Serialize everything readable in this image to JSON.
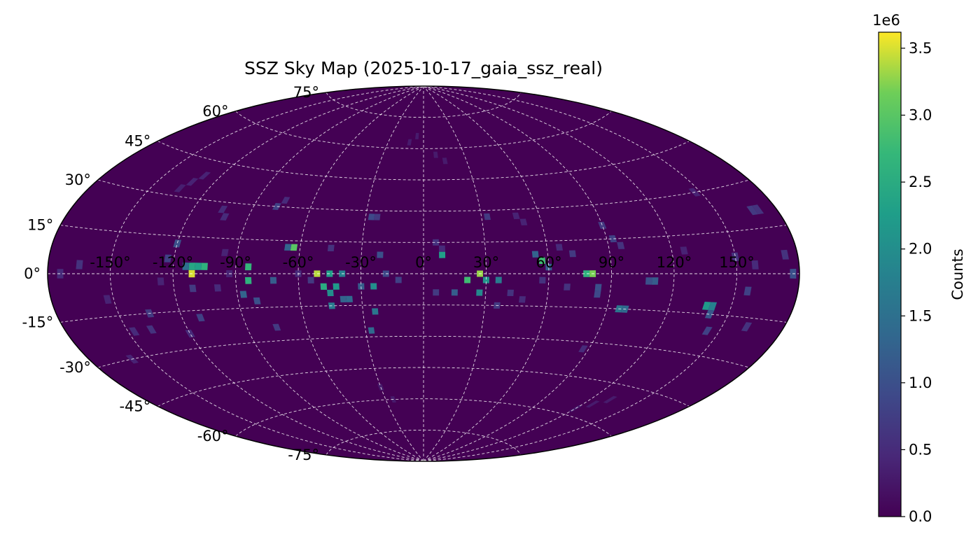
{
  "chart_data": {
    "type": "heatmap",
    "projection": "aitoff",
    "title": "SSZ Sky Map (2025-10-17_gaia_ssz_real)",
    "colormap": "viridis",
    "grid": true,
    "xlim": [
      -180,
      180
    ],
    "ylim": [
      -90,
      90
    ],
    "lon_ticks": [
      -150,
      -120,
      -90,
      -60,
      -30,
      0,
      30,
      60,
      90,
      120,
      150
    ],
    "lon_tick_labels": [
      "-150°",
      "-120°",
      "-90°",
      "-60°",
      "-30°",
      "0°",
      "30°",
      "60°",
      "90°",
      "120°",
      "150°"
    ],
    "lat_ticks": [
      75,
      60,
      45,
      30,
      15,
      0,
      -15,
      -30,
      -45,
      -60,
      -75
    ],
    "lat_tick_labels": [
      "75°",
      "60°",
      "45°",
      "30°",
      "15°",
      "0°",
      "-15°",
      "-30°",
      "-45°",
      "-60°",
      "-75°"
    ],
    "colorbar": {
      "label": "Counts",
      "offset_text": "1e6",
      "vmin": 0,
      "vmax": 3620000,
      "ticks": [
        0,
        500000,
        1000000,
        1500000,
        2000000,
        2500000,
        3000000,
        3500000
      ],
      "tick_labels": [
        "0.0",
        "0.5",
        "1.0",
        "1.5",
        "2.0",
        "2.5",
        "3.0",
        "3.5"
      ]
    },
    "bin_size_deg": 3,
    "cells": [
      {
        "lon": -111,
        "lat": 0,
        "value": 3500000
      },
      {
        "lon": -111,
        "lat": 3,
        "value": 2400000
      },
      {
        "lon": -114,
        "lat": 3,
        "value": 1500000
      },
      {
        "lon": -108,
        "lat": 3,
        "value": 2300000
      },
      {
        "lon": -105,
        "lat": 3,
        "value": 2600000
      },
      {
        "lon": -120,
        "lat": 12,
        "value": 1000000
      },
      {
        "lon": -123,
        "lat": 6,
        "value": 800000
      },
      {
        "lon": -111,
        "lat": -6,
        "value": 700000
      },
      {
        "lon": -111,
        "lat": -18,
        "value": 800000
      },
      {
        "lon": -135,
        "lat": -15,
        "value": 700000
      },
      {
        "lon": -138,
        "lat": -21,
        "value": 600000
      },
      {
        "lon": -120,
        "lat": -24,
        "value": 500000
      },
      {
        "lon": -105,
        "lat": 27,
        "value": 500000
      },
      {
        "lon": -102,
        "lat": 24,
        "value": 500000
      },
      {
        "lon": -93,
        "lat": 0,
        "value": 400000
      },
      {
        "lon": -84,
        "lat": 3,
        "value": 2700000
      },
      {
        "lon": -84,
        "lat": -3,
        "value": 2600000
      },
      {
        "lon": -87,
        "lat": -9,
        "value": 1300000
      },
      {
        "lon": -81,
        "lat": -12,
        "value": 1000000
      },
      {
        "lon": -72,
        "lat": -3,
        "value": 1200000
      },
      {
        "lon": -75,
        "lat": -24,
        "value": 700000
      },
      {
        "lon": -78,
        "lat": 30,
        "value": 800000
      },
      {
        "lon": -75,
        "lat": 33,
        "value": 500000
      },
      {
        "lon": -63,
        "lat": 12,
        "value": 3000000
      },
      {
        "lon": -66,
        "lat": 12,
        "value": 1300000
      },
      {
        "lon": -51,
        "lat": 0,
        "value": 3400000
      },
      {
        "lon": -48,
        "lat": -6,
        "value": 2500000
      },
      {
        "lon": -45,
        "lat": -9,
        "value": 2000000
      },
      {
        "lon": -42,
        "lat": -6,
        "value": 2200000
      },
      {
        "lon": -45,
        "lat": 0,
        "value": 2300000
      },
      {
        "lon": -39,
        "lat": 0,
        "value": 1800000
      },
      {
        "lon": -36,
        "lat": -12,
        "value": 1400000
      },
      {
        "lon": -39,
        "lat": -12,
        "value": 1300000
      },
      {
        "lon": -45,
        "lat": -15,
        "value": 1700000
      },
      {
        "lon": -30,
        "lat": -6,
        "value": 1200000
      },
      {
        "lon": -24,
        "lat": -6,
        "value": 2000000
      },
      {
        "lon": -24,
        "lat": -18,
        "value": 1600000
      },
      {
        "lon": -27,
        "lat": -27,
        "value": 1400000
      },
      {
        "lon": -21,
        "lat": 9,
        "value": 1000000
      },
      {
        "lon": -27,
        "lat": 27,
        "value": 900000
      },
      {
        "lon": -24,
        "lat": 27,
        "value": 700000
      },
      {
        "lon": -18,
        "lat": 0,
        "value": 900000
      },
      {
        "lon": -12,
        "lat": -3,
        "value": 800000
      },
      {
        "lon": 6,
        "lat": 15,
        "value": 600000
      },
      {
        "lon": 9,
        "lat": 12,
        "value": 500000
      },
      {
        "lon": 9,
        "lat": 9,
        "value": 2300000
      },
      {
        "lon": 6,
        "lat": -9,
        "value": 700000
      },
      {
        "lon": 15,
        "lat": -9,
        "value": 1200000
      },
      {
        "lon": 21,
        "lat": -3,
        "value": 2800000
      },
      {
        "lon": 27,
        "lat": 0,
        "value": 3300000
      },
      {
        "lon": 30,
        "lat": -3,
        "value": 2100000
      },
      {
        "lon": 36,
        "lat": -3,
        "value": 1700000
      },
      {
        "lon": 27,
        "lat": -9,
        "value": 1900000
      },
      {
        "lon": 36,
        "lat": -15,
        "value": 700000
      },
      {
        "lon": 33,
        "lat": 27,
        "value": 700000
      },
      {
        "lon": 54,
        "lat": 9,
        "value": 1300000
      },
      {
        "lon": 57,
        "lat": 6,
        "value": 2800000
      },
      {
        "lon": 60,
        "lat": 3,
        "value": 1200000
      },
      {
        "lon": 57,
        "lat": -3,
        "value": 600000
      },
      {
        "lon": 72,
        "lat": 9,
        "value": 700000
      },
      {
        "lon": 81,
        "lat": 0,
        "value": 3200000
      },
      {
        "lon": 78,
        "lat": 0,
        "value": 2600000
      },
      {
        "lon": 84,
        "lat": -6,
        "value": 1000000
      },
      {
        "lon": 84,
        "lat": -9,
        "value": 900000
      },
      {
        "lon": 96,
        "lat": -15,
        "value": 1600000
      },
      {
        "lon": 99,
        "lat": -15,
        "value": 1400000
      },
      {
        "lon": 90,
        "lat": 21,
        "value": 700000
      },
      {
        "lon": 93,
        "lat": 15,
        "value": 800000
      },
      {
        "lon": 96,
        "lat": 12,
        "value": 600000
      },
      {
        "lon": 87,
        "lat": -33,
        "value": 500000
      },
      {
        "lon": 111,
        "lat": -3,
        "value": 1200000
      },
      {
        "lon": 108,
        "lat": -3,
        "value": 1000000
      },
      {
        "lon": 138,
        "lat": -12,
        "value": 2200000
      },
      {
        "lon": 141,
        "lat": -12,
        "value": 1800000
      },
      {
        "lon": 141,
        "lat": -15,
        "value": 1100000
      },
      {
        "lon": 144,
        "lat": -21,
        "value": 800000
      },
      {
        "lon": 150,
        "lat": 6,
        "value": 600000
      },
      {
        "lon": 156,
        "lat": -6,
        "value": 800000
      },
      {
        "lon": 162,
        "lat": -18,
        "value": 600000
      },
      {
        "lon": 168,
        "lat": 21,
        "value": 700000
      },
      {
        "lon": 171,
        "lat": 21,
        "value": 600000
      },
      {
        "lon": 159,
        "lat": 3,
        "value": 500000
      },
      {
        "lon": 174,
        "lat": 6,
        "value": 600000
      },
      {
        "lon": 177,
        "lat": 0,
        "value": 1000000
      },
      {
        "lon": 147,
        "lat": 30,
        "value": 400000
      },
      {
        "lon": -147,
        "lat": -21,
        "value": 500000
      },
      {
        "lon": -165,
        "lat": 3,
        "value": 600000
      },
      {
        "lon": -174,
        "lat": 0,
        "value": 500000
      },
      {
        "lon": -159,
        "lat": -30,
        "value": 400000
      },
      {
        "lon": -132,
        "lat": 36,
        "value": 400000
      },
      {
        "lon": -129,
        "lat": 39,
        "value": 400000
      },
      {
        "lon": -135,
        "lat": 33,
        "value": 350000
      },
      {
        "lon": -12,
        "lat": 63,
        "value": 300000
      },
      {
        "lon": -6,
        "lat": 66,
        "value": 300000
      },
      {
        "lon": 9,
        "lat": 57,
        "value": 300000
      },
      {
        "lon": 15,
        "lat": 54,
        "value": 300000
      },
      {
        "lon": 126,
        "lat": -54,
        "value": 300000
      },
      {
        "lon": 132,
        "lat": -51,
        "value": 300000
      },
      {
        "lon": 120,
        "lat": -57,
        "value": 300000
      },
      {
        "lon": -30,
        "lat": -54,
        "value": 300000
      },
      {
        "lon": -24,
        "lat": -60,
        "value": 300000
      },
      {
        "lon": -45,
        "lat": 12,
        "value": 600000
      },
      {
        "lon": -60,
        "lat": 0,
        "value": 500000
      },
      {
        "lon": -54,
        "lat": -3,
        "value": 700000
      },
      {
        "lon": 42,
        "lat": -9,
        "value": 600000
      },
      {
        "lon": 48,
        "lat": -12,
        "value": 500000
      },
      {
        "lon": 66,
        "lat": 12,
        "value": 500000
      },
      {
        "lon": 69,
        "lat": -6,
        "value": 600000
      },
      {
        "lon": 126,
        "lat": 9,
        "value": 400000
      },
      {
        "lon": -96,
        "lat": 9,
        "value": 400000
      },
      {
        "lon": -99,
        "lat": -6,
        "value": 500000
      },
      {
        "lon": -126,
        "lat": -3,
        "value": 400000
      },
      {
        "lon": -153,
        "lat": -9,
        "value": 400000
      },
      {
        "lon": 48,
        "lat": 27,
        "value": 400000
      },
      {
        "lon": 51,
        "lat": 24,
        "value": 400000
      }
    ]
  }
}
